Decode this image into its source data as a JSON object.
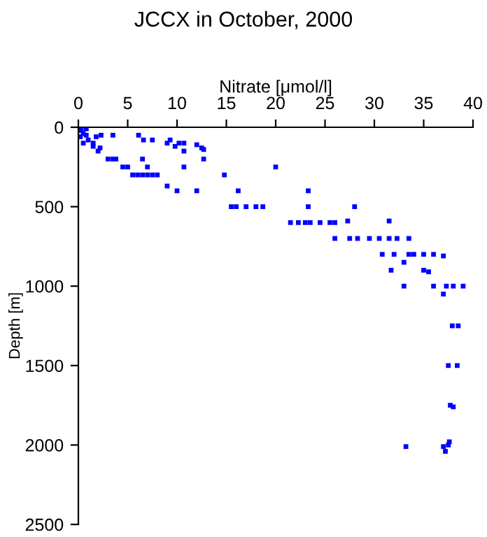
{
  "chart_data": {
    "type": "scatter",
    "title": "JCCX in October, 2000",
    "xlabel": "Nitrate [μmol/l]",
    "ylabel": "Depth [m]",
    "xlim": [
      0,
      40
    ],
    "xticks": [
      0,
      5,
      10,
      15,
      20,
      25,
      30,
      35,
      40
    ],
    "ylim": [
      2500,
      0
    ],
    "yticks": [
      0,
      500,
      1000,
      1500,
      2000,
      2500
    ],
    "grid": false,
    "marker": "square",
    "series": [
      {
        "color": "#0000ff",
        "x": [
          0.2,
          0.3,
          0.5,
          0.2,
          0.8,
          0.8,
          0.5,
          1,
          1.5,
          1.5,
          2,
          2.2,
          1.8,
          2.3,
          3.5,
          6.1,
          6.6,
          7.5,
          9,
          9.3,
          9.8,
          10.2,
          10.7,
          10.7,
          12,
          12.5,
          12.7,
          12.7,
          3,
          3.5,
          3.8,
          6.5,
          4.5,
          5,
          5.5,
          6,
          6.5,
          7,
          7.5,
          8,
          7,
          10.7,
          9,
          10,
          12,
          14.8,
          16.2,
          20,
          15.5,
          16,
          17,
          18,
          18.7,
          23.3,
          23.3,
          28,
          21.5,
          22.3,
          23,
          23.5,
          24.5,
          25.5,
          26,
          27.3,
          31.5,
          26,
          27.5,
          28.3,
          29.5,
          30.5,
          31.5,
          32.3,
          33.5,
          30.8,
          32,
          33.5,
          34,
          35,
          36,
          37,
          33,
          31.7,
          35,
          35.5,
          33,
          36,
          37.3,
          38,
          39,
          37,
          37.9,
          38.5,
          37.5,
          38.4,
          37.7,
          38,
          33.2,
          37,
          37.5,
          37.2,
          37.6
        ],
        "values": [
          0,
          20,
          40,
          60,
          10,
          50,
          100,
          80,
          120,
          100,
          150,
          130,
          60,
          50,
          50,
          50,
          80,
          80,
          100,
          80,
          120,
          100,
          100,
          150,
          110,
          130,
          140,
          200,
          200,
          200,
          200,
          200,
          250,
          250,
          300,
          300,
          300,
          300,
          300,
          300,
          250,
          250,
          370,
          400,
          400,
          300,
          400,
          250,
          500,
          500,
          500,
          500,
          500,
          400,
          500,
          500,
          600,
          600,
          600,
          600,
          600,
          600,
          600,
          590,
          590,
          700,
          700,
          700,
          700,
          700,
          700,
          700,
          700,
          800,
          800,
          800,
          800,
          800,
          800,
          810,
          850,
          900,
          900,
          910,
          1000,
          1000,
          1000,
          1000,
          1000,
          1050,
          1250,
          1250,
          1500,
          1500,
          1750,
          1760,
          2010,
          2010,
          2000,
          2040,
          1980
        ]
      }
    ]
  }
}
